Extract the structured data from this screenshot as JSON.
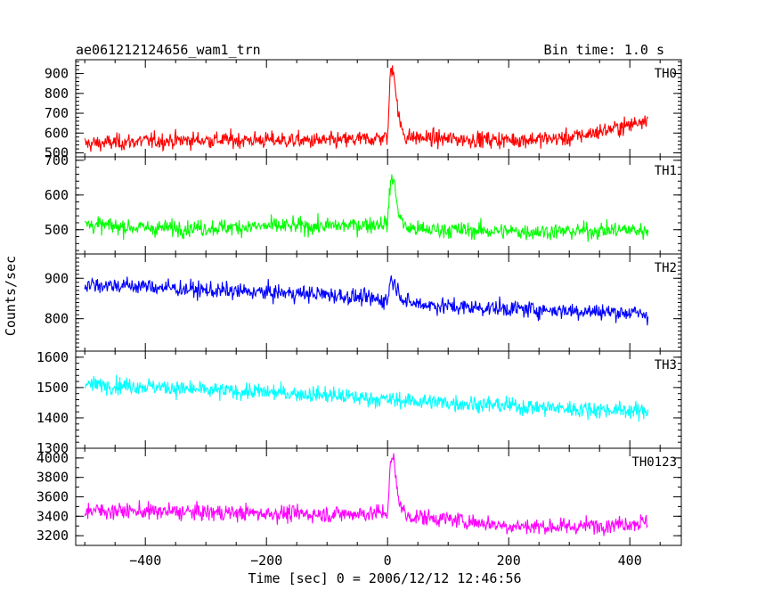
{
  "chart_data": {
    "type": "line",
    "title": "ae061212124656_wam1_trn",
    "subtitle": "Bin time: 1.0 s",
    "xlabel": "Time [sec] 0 = 2006/12/12 12:46:56",
    "ylabel": "Counts/sec",
    "xlim": [
      -515,
      485
    ],
    "x_ticks": [
      -400,
      -200,
      0,
      200,
      400
    ],
    "x_range": [
      -500,
      430
    ],
    "panels": [
      {
        "name": "TH0",
        "color": "#ff0000",
        "ylim": [
          480,
          970
        ],
        "y_ticks": [
          500,
          600,
          700,
          800,
          900
        ],
        "x": [
          -500,
          -400,
          -300,
          -200,
          -100,
          -30,
          0,
          5,
          10,
          15,
          20,
          30,
          60,
          100,
          200,
          300,
          400,
          430
        ],
        "y": [
          545,
          560,
          565,
          565,
          560,
          570,
          580,
          920,
          930,
          760,
          650,
          580,
          575,
          570,
          565,
          575,
          640,
          680
        ]
      },
      {
        "name": "TH1",
        "color": "#00ff00",
        "ylim": [
          430,
          710
        ],
        "y_ticks": [
          500,
          600,
          700
        ],
        "x": [
          -500,
          -400,
          -300,
          -200,
          -100,
          -30,
          0,
          5,
          10,
          15,
          20,
          30,
          60,
          100,
          200,
          300,
          400,
          430
        ],
        "y": [
          515,
          505,
          505,
          510,
          510,
          515,
          520,
          640,
          650,
          580,
          540,
          505,
          500,
          500,
          495,
          495,
          500,
          495
        ]
      },
      {
        "name": "TH2",
        "color": "#0000ff",
        "ylim": [
          720,
          960
        ],
        "y_ticks": [
          800,
          900
        ],
        "x": [
          -500,
          -400,
          -300,
          -200,
          -100,
          -30,
          0,
          5,
          10,
          30,
          100,
          200,
          300,
          400,
          430
        ],
        "y": [
          885,
          880,
          870,
          865,
          860,
          850,
          845,
          900,
          890,
          840,
          830,
          825,
          820,
          815,
          810
        ]
      },
      {
        "name": "TH3",
        "color": "#00ffff",
        "ylim": [
          1300,
          1620
        ],
        "y_ticks": [
          1300,
          1400,
          1500,
          1600
        ],
        "x": [
          -500,
          -400,
          -300,
          -200,
          -100,
          0,
          100,
          200,
          300,
          400,
          430
        ],
        "y": [
          1510,
          1505,
          1490,
          1485,
          1475,
          1460,
          1450,
          1440,
          1430,
          1425,
          1420
        ]
      },
      {
        "name": "TH0123",
        "color": "#ff00ff",
        "ylim": [
          3100,
          4100
        ],
        "y_ticks": [
          3200,
          3400,
          3600,
          3800,
          4000
        ],
        "x": [
          -500,
          -400,
          -300,
          -200,
          -100,
          -30,
          0,
          5,
          10,
          15,
          20,
          30,
          60,
          100,
          200,
          300,
          400,
          430
        ],
        "y": [
          3460,
          3450,
          3440,
          3430,
          3420,
          3430,
          3440,
          3950,
          4000,
          3700,
          3550,
          3400,
          3390,
          3370,
          3300,
          3290,
          3330,
          3340
        ]
      }
    ]
  }
}
